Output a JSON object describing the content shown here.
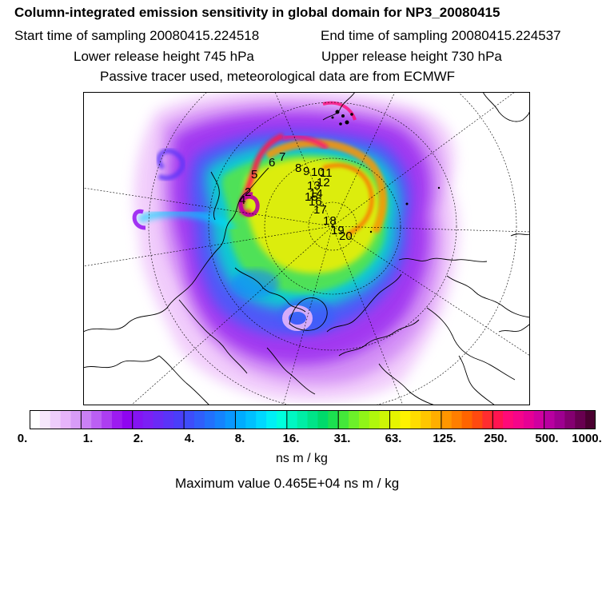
{
  "title": "Column-integrated emission sensitivity in global domain for NP3_20080415",
  "start_time": "Start time of sampling 20080415.224518",
  "end_time": "End time of sampling 20080415.224537",
  "lower_release": "Lower release height  745 hPa",
  "upper_release": "Upper release height  730 hPa",
  "tracer_note": "Passive tracer used, meteorological data are from ECMWF",
  "colorbar": {
    "tick_labels": [
      "0.",
      "1.",
      "2.",
      "4.",
      "8.",
      "16.",
      "31.",
      "63.",
      "125.",
      "250.",
      "500.",
      "1000."
    ],
    "colors": [
      "#ffffff",
      "#f6e6fc",
      "#eecdfb",
      "#e6b4fa",
      "#d89cf7",
      "#ca80f5",
      "#bb5ff3",
      "#ad3ef1",
      "#9d1bf0",
      "#8f05f0",
      "#8414f2",
      "#7b20f4",
      "#6a2af6",
      "#5a34f8",
      "#4a3ef9",
      "#3e4dfa",
      "#305efb",
      "#2270fc",
      "#1583fd",
      "#0a98fe",
      "#00acff",
      "#00c0ff",
      "#00d8ff",
      "#00f0f5",
      "#00ffdd",
      "#00f7c2",
      "#00eea5",
      "#00e488",
      "#00da6b",
      "#1ce050",
      "#44e83a",
      "#6cf02a",
      "#90f518",
      "#b0f70c",
      "#cdf505",
      "#e6f500",
      "#fff200",
      "#ffdd00",
      "#ffc600",
      "#ffae00",
      "#ff9600",
      "#ff7e00",
      "#ff6400",
      "#ff4a10",
      "#ff2d30",
      "#ff1450",
      "#ff0a78",
      "#f5058a",
      "#e60095",
      "#cf00a0",
      "#b800a0",
      "#9e0090",
      "#840070",
      "#680050",
      "#4a0030"
    ],
    "unit_label": "ns m / kg"
  },
  "max_value": "Maximum value  0.465E+04 ns m / kg",
  "trajectory_labels": [
    "2",
    "4",
    "5",
    "6",
    "7",
    "8",
    "9",
    "10",
    "11",
    "12",
    "13",
    "14",
    "15",
    "16",
    "17",
    "18",
    "19",
    "20"
  ]
}
